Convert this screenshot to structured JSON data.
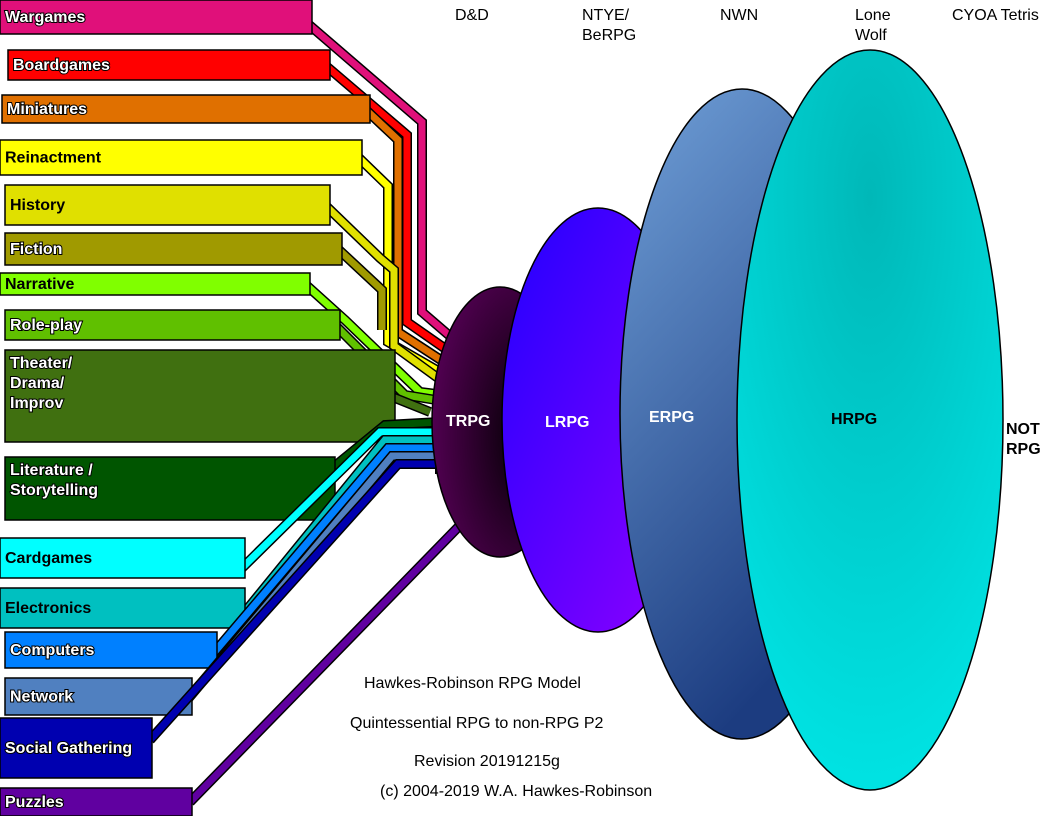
{
  "top_labels": [
    [
      "D&D"
    ],
    [
      "NTYE/",
      "BeRPG"
    ],
    [
      "NWN"
    ],
    [
      "Lone",
      "Wolf"
    ],
    [
      "CYOA Tetris"
    ]
  ],
  "sources": [
    [
      "Wargames"
    ],
    [
      "Boardgames"
    ],
    [
      "Miniatures"
    ],
    [
      "Reinactment"
    ],
    [
      "History"
    ],
    [
      "Fiction"
    ],
    [
      "Narrative"
    ],
    [
      "Role-play"
    ],
    [
      "Theater/",
      "Drama/",
      "Improv"
    ],
    [
      "Literature /",
      "Storytelling"
    ],
    [
      "Cardgames"
    ],
    [
      "Electronics"
    ],
    [
      "Computers"
    ],
    [
      "Network"
    ],
    [
      "Social Gathering"
    ],
    [
      "Puzzles"
    ]
  ],
  "circles": [
    "TRPG",
    "LRPG",
    "ERPG",
    "HRPG"
  ],
  "outside": [
    "NOT",
    "RPG"
  ],
  "caption": [
    "Hawkes-Robinson RPG Model",
    "Quintessential RPG to non-RPG P2",
    "Revision 20191215g",
    "(c) 2004-2019 W.A. Hawkes-Robinson"
  ]
}
